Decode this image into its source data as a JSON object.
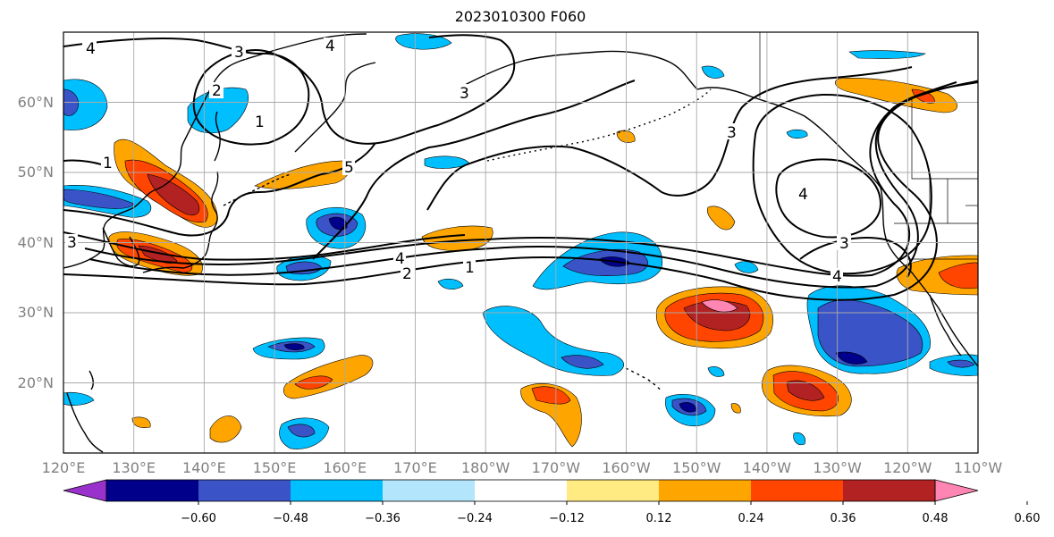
{
  "title": "2023010300 F060",
  "latitude_labels": [
    {
      "label": "60°N",
      "lat": 60
    },
    {
      "label": "50°N",
      "lat": 50
    },
    {
      "label": "40°N",
      "lat": 40
    },
    {
      "label": "30°N",
      "lat": 30
    },
    {
      "label": "20°N",
      "lat": 20
    }
  ],
  "longitude_labels": [
    {
      "label": "120°E",
      "lon": 120
    },
    {
      "label": "130°E",
      "lon": 130
    },
    {
      "label": "140°E",
      "lon": 140
    },
    {
      "label": "150°E",
      "lon": 150
    },
    {
      "label": "160°E",
      "lon": 160
    },
    {
      "label": "170°E",
      "lon": 170
    },
    {
      "label": "180°W",
      "lon": 180
    },
    {
      "label": "170°W",
      "lon": 190
    },
    {
      "label": "160°W",
      "lon": 200
    },
    {
      "label": "150°W",
      "lon": 210
    },
    {
      "label": "140°W",
      "lon": 220
    },
    {
      "label": "130°W",
      "lon": 230
    },
    {
      "label": "120°W",
      "lon": 240
    },
    {
      "label": "110°W",
      "lon": 250
    }
  ],
  "contour_labels": [
    "4",
    "3",
    "2",
    "1",
    "4",
    "3",
    "1",
    "5",
    "3",
    "4",
    "3",
    "4",
    "4",
    "2",
    "1",
    "3"
  ],
  "colorbar": {
    "ticks": [
      "−0.60",
      "−0.48",
      "−0.36",
      "−0.24",
      "−0.12",
      "0.12",
      "0.24",
      "0.36",
      "0.48",
      "0.60"
    ],
    "colors": [
      "#9932cc",
      "#00008b",
      "#3a54c8",
      "#00bfff",
      "#b3e5fc",
      "#ffffff",
      "#ffeb82",
      "#ffa500",
      "#ff4500",
      "#b22222",
      "#ff85b3"
    ]
  },
  "map": {
    "lon_range": [
      120,
      250
    ],
    "lat_range": [
      10,
      70
    ]
  }
}
